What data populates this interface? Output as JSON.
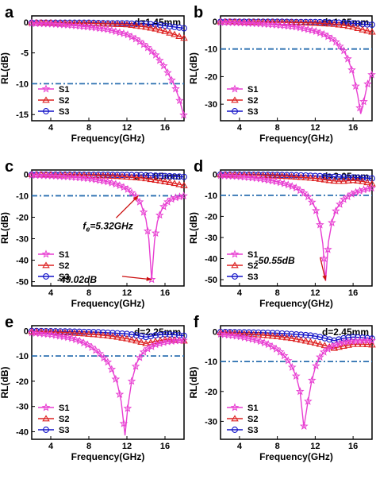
{
  "figure": {
    "shared_xlabel": "Frequency(GHz)",
    "shared_ylabel": "RL(dB)"
  },
  "chart_data": [
    {
      "type": "line",
      "panel": "a",
      "thickness": "d=1.45mm",
      "xlabel": "Frequency(GHz)",
      "ylabel": "RL(dB)",
      "xlim": [
        2,
        18
      ],
      "ylim": [
        -16,
        1
      ],
      "xticks": [
        4,
        8,
        12,
        16
      ],
      "yticks": [
        0,
        -5,
        -10,
        -15
      ],
      "ref_line": -10,
      "legend": "bottom-left",
      "x": [
        2,
        4,
        6,
        8,
        10,
        12,
        13,
        14,
        15,
        16,
        17,
        17.5,
        18
      ],
      "series": [
        {
          "name": "S1",
          "values": [
            -0.2,
            -0.3,
            -0.5,
            -0.8,
            -1.2,
            -2.0,
            -2.8,
            -3.9,
            -5.3,
            -7.4,
            -10.3,
            -12.5,
            -15.3
          ]
        },
        {
          "name": "S2",
          "values": [
            -0.1,
            -0.1,
            -0.2,
            -0.2,
            -0.3,
            -0.4,
            -0.6,
            -0.8,
            -1.1,
            -1.5,
            -2.0,
            -2.3,
            -2.6
          ]
        },
        {
          "name": "S3",
          "values": [
            -0.1,
            -0.1,
            -0.1,
            -0.1,
            -0.2,
            -0.2,
            -0.3,
            -0.3,
            -0.4,
            -0.6,
            -0.8,
            -0.9,
            -1.0
          ]
        }
      ],
      "colors": {
        "S1": "#e83fd2",
        "S2": "#dd2222",
        "S3": "#1414c8",
        "ref": "#2a6fb0"
      }
    },
    {
      "type": "line",
      "panel": "b",
      "thickness": "d=1.65mm",
      "xlabel": "Frequency(GHz)",
      "ylabel": "RL(dB)",
      "xlim": [
        2,
        18
      ],
      "ylim": [
        -36,
        2
      ],
      "xticks": [
        4,
        8,
        12,
        16
      ],
      "yticks": [
        0,
        -10,
        -20,
        -30
      ],
      "ref_line": -10,
      "legend": "bottom-left",
      "x": [
        2,
        4,
        6,
        8,
        10,
        12,
        13,
        14,
        15,
        15.5,
        16,
        16.5,
        16.8,
        17,
        17.5,
        18
      ],
      "series": [
        {
          "name": "S1",
          "values": [
            -0.3,
            -0.5,
            -0.8,
            -1.3,
            -2.0,
            -3.5,
            -4.8,
            -6.8,
            -10.5,
            -14,
            -19,
            -27,
            -33.5,
            -31,
            -23,
            -19
          ]
        },
        {
          "name": "S2",
          "values": [
            -0.1,
            -0.2,
            -0.2,
            -0.3,
            -0.4,
            -0.6,
            -0.8,
            -1.0,
            -1.4,
            -1.7,
            -2.0,
            -2.5,
            -2.8,
            -3.0,
            -3.4,
            -3.8
          ]
        },
        {
          "name": "S3",
          "values": [
            -0.1,
            -0.1,
            -0.1,
            -0.1,
            -0.2,
            -0.2,
            -0.3,
            -0.4,
            -0.5,
            -0.6,
            -0.7,
            -0.8,
            -0.9,
            -1.0,
            -1.1,
            -1.2
          ]
        }
      ],
      "colors": {
        "S1": "#e83fd2",
        "S2": "#dd2222",
        "S3": "#1414c8",
        "ref": "#2a6fb0"
      }
    },
    {
      "type": "line",
      "panel": "c",
      "thickness": "d=1.85mm",
      "xlabel": "Frequency(GHz)",
      "ylabel": "RL(dB)",
      "xlim": [
        2,
        18
      ],
      "ylim": [
        -52,
        2
      ],
      "xticks": [
        4,
        8,
        12,
        16
      ],
      "yticks": [
        0,
        -10,
        -20,
        -30,
        -40,
        -50
      ],
      "ref_line": -10,
      "legend": "bottom-left",
      "annotations": [
        {
          "text": "fe=5.32GHz",
          "html_main": "f",
          "html_sub": "e",
          "html_rest": "=5.32GHz",
          "x": 13.2,
          "y": -10,
          "text_x": 9.2,
          "text_y": -24
        },
        {
          "text": "-49.02dB",
          "x": 14.6,
          "y": -49,
          "text_x": 6.5,
          "text_y": -49
        }
      ],
      "x": [
        2,
        4,
        6,
        8,
        10,
        11,
        12,
        13,
        13.5,
        14,
        14.3,
        14.6,
        14.9,
        15.2,
        15.6,
        16,
        16.5,
        17,
        17.5,
        18
      ],
      "series": [
        {
          "name": "S1",
          "values": [
            -0.4,
            -0.7,
            -1.2,
            -2.0,
            -3.5,
            -4.8,
            -6.7,
            -10.5,
            -14,
            -21,
            -30,
            -49,
            -31,
            -22,
            -17,
            -14,
            -12,
            -11,
            -10.5,
            -10
          ]
        },
        {
          "name": "S2",
          "values": [
            -0.1,
            -0.2,
            -0.3,
            -0.5,
            -0.7,
            -0.9,
            -1.2,
            -1.5,
            -1.7,
            -2.0,
            -2.2,
            -2.4,
            -2.6,
            -2.8,
            -3.1,
            -3.4,
            -3.8,
            -4.2,
            -4.7,
            -5.2
          ]
        },
        {
          "name": "S3",
          "values": [
            -0.1,
            -0.1,
            -0.1,
            -0.2,
            -0.2,
            -0.3,
            -0.3,
            -0.4,
            -0.4,
            -0.5,
            -0.5,
            -0.6,
            -0.6,
            -0.7,
            -0.7,
            -0.8,
            -0.9,
            -1.0,
            -1.1,
            -1.2
          ]
        }
      ],
      "colors": {
        "S1": "#e83fd2",
        "S2": "#dd2222",
        "S3": "#1414c8",
        "ref": "#2a6fb0",
        "annotation": "#cc1111"
      }
    },
    {
      "type": "line",
      "panel": "d",
      "thickness": "d=2.05mm",
      "xlabel": "Frequency(GHz)",
      "ylabel": "RL(dB)",
      "xlim": [
        2,
        18
      ],
      "ylim": [
        -53,
        2
      ],
      "xticks": [
        4,
        8,
        12,
        16
      ],
      "yticks": [
        0,
        -10,
        -20,
        -30,
        -40,
        -50
      ],
      "ref_line": -10,
      "legend": "bottom-left",
      "annotations": [
        {
          "text": "-50.55dB",
          "x": 13.1,
          "y": -50.5,
          "text_x": 7.5,
          "text_y": -41
        }
      ],
      "x": [
        2,
        4,
        6,
        8,
        9,
        10,
        11,
        11.5,
        12,
        12.5,
        12.8,
        13.1,
        13.4,
        13.8,
        14.3,
        15,
        16,
        17,
        18
      ],
      "series": [
        {
          "name": "S1",
          "values": [
            -0.6,
            -1.1,
            -2.0,
            -3.6,
            -4.8,
            -6.5,
            -9.5,
            -12,
            -16,
            -24,
            -33,
            -50.5,
            -32,
            -22,
            -16,
            -12,
            -9,
            -7.5,
            -6.5
          ]
        },
        {
          "name": "S2",
          "values": [
            -0.2,
            -0.3,
            -0.5,
            -0.8,
            -1.0,
            -1.3,
            -1.6,
            -1.8,
            -2.0,
            -2.3,
            -2.5,
            -2.7,
            -2.9,
            -3.1,
            -3.3,
            -3.3,
            -2.9,
            -3.4,
            -4.5
          ]
        },
        {
          "name": "S3",
          "values": [
            -0.1,
            -0.1,
            -0.2,
            -0.3,
            -0.4,
            -0.5,
            -0.6,
            -0.7,
            -0.8,
            -0.9,
            -1.0,
            -1.0,
            -1.1,
            -1.2,
            -1.3,
            -1.4,
            -1.5,
            -1.7,
            -2.0
          ]
        }
      ],
      "colors": {
        "S1": "#e83fd2",
        "S2": "#dd2222",
        "S3": "#1414c8",
        "ref": "#2a6fb0",
        "annotation": "#cc1111"
      }
    },
    {
      "type": "line",
      "panel": "e",
      "thickness": "d=2.25mm",
      "xlabel": "Frequency(GHz)",
      "ylabel": "RL(dB)",
      "xlim": [
        2,
        18
      ],
      "ylim": [
        -43,
        2
      ],
      "xticks": [
        4,
        8,
        12,
        16
      ],
      "yticks": [
        0,
        -10,
        -20,
        -30,
        -40
      ],
      "ref_line": -10,
      "legend": "bottom-left",
      "x": [
        2,
        4,
        6,
        7,
        8,
        9,
        10,
        10.5,
        11,
        11.4,
        11.8,
        12.1,
        12.5,
        13,
        13.5,
        14,
        15,
        16,
        17,
        18
      ],
      "series": [
        {
          "name": "S1",
          "values": [
            -0.8,
            -1.5,
            -2.8,
            -4.0,
            -5.8,
            -8.5,
            -12.5,
            -16,
            -21,
            -28,
            -41.5,
            -30,
            -20,
            -13,
            -9.5,
            -7.5,
            -5.5,
            -4.5,
            -4.0,
            -3.8
          ]
        },
        {
          "name": "S2",
          "values": [
            -0.3,
            -0.5,
            -0.8,
            -1.0,
            -1.3,
            -1.6,
            -2.0,
            -2.2,
            -2.5,
            -2.8,
            -3.0,
            -3.2,
            -3.6,
            -4.0,
            -4.5,
            -5.0,
            -4.2,
            -3.5,
            -3.6,
            -4.0
          ]
        },
        {
          "name": "S3",
          "values": [
            -0.1,
            -0.2,
            -0.3,
            -0.4,
            -0.5,
            -0.6,
            -0.8,
            -0.9,
            -1.0,
            -1.1,
            -1.2,
            -1.3,
            -1.5,
            -1.8,
            -2.2,
            -2.5,
            -1.8,
            -1.4,
            -1.6,
            -2.0
          ]
        }
      ],
      "colors": {
        "S1": "#e83fd2",
        "S2": "#dd2222",
        "S3": "#1414c8",
        "ref": "#2a6fb0"
      }
    },
    {
      "type": "line",
      "panel": "f",
      "thickness": "d=2.45mm",
      "xlabel": "Frequency(GHz)",
      "ylabel": "RL(dB)",
      "xlim": [
        2,
        18
      ],
      "ylim": [
        -36,
        2
      ],
      "xticks": [
        4,
        8,
        12,
        16
      ],
      "yticks": [
        0,
        -10,
        -20,
        -30
      ],
      "ref_line": -10,
      "legend": "bottom-left",
      "x": [
        2,
        4,
        6,
        7,
        8,
        8.5,
        9,
        9.5,
        10,
        10.4,
        10.8,
        11.2,
        11.6,
        12,
        12.5,
        13,
        14,
        15,
        16,
        17,
        18
      ],
      "series": [
        {
          "name": "S1",
          "values": [
            -0.8,
            -1.6,
            -3.0,
            -4.2,
            -6.0,
            -7.3,
            -9.0,
            -11.5,
            -15,
            -20,
            -32,
            -24,
            -17,
            -12,
            -8.5,
            -6.5,
            -4.5,
            -3.5,
            -3.2,
            -3.0,
            -3.0
          ]
        },
        {
          "name": "S2",
          "values": [
            -0.3,
            -0.6,
            -1.0,
            -1.3,
            -1.6,
            -1.8,
            -2.0,
            -2.2,
            -2.5,
            -2.7,
            -3.0,
            -3.2,
            -3.5,
            -3.8,
            -4.2,
            -4.6,
            -5.5,
            -4.8,
            -4.2,
            -4.2,
            -4.4
          ]
        },
        {
          "name": "S3",
          "values": [
            -0.1,
            -0.2,
            -0.3,
            -0.4,
            -0.5,
            -0.6,
            -0.7,
            -0.8,
            -0.9,
            -1.0,
            -1.1,
            -1.2,
            -1.3,
            -1.5,
            -1.8,
            -2.2,
            -3.0,
            -2.2,
            -1.8,
            -2.0,
            -2.3
          ]
        }
      ],
      "colors": {
        "S1": "#e83fd2",
        "S2": "#dd2222",
        "S3": "#1414c8",
        "ref": "#2a6fb0"
      }
    }
  ]
}
